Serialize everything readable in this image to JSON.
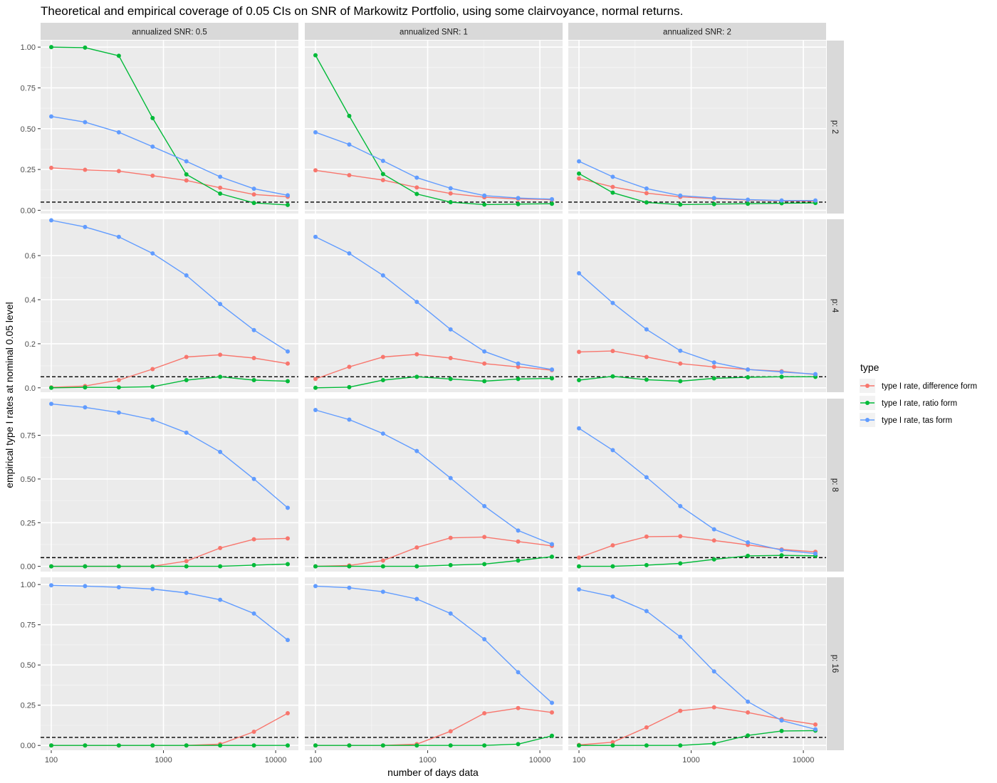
{
  "chart_data": {
    "type": "line",
    "title": "Theoretical and empirical coverage of 0.05 CIs on SNR of Markowitz Portfolio, using some clairvoyance, normal returns.",
    "xlabel": "number of days data",
    "ylabel": "empirical type I rates at nominal 0.05 level",
    "x_scale": "log10",
    "x_ticks": [
      100,
      1000,
      10000
    ],
    "x_tick_labels": [
      "100",
      "1000",
      "10000"
    ],
    "x": [
      100,
      200,
      400,
      800,
      1600,
      3200,
      6400,
      12800
    ],
    "reference_line": {
      "y": 0.05,
      "style": "dashed",
      "color": "#000000"
    },
    "legend": {
      "title": "type",
      "position": "right",
      "entries": [
        {
          "name": "type I rate, difference form",
          "color": "#F8766D"
        },
        {
          "name": "type I rate, ratio form",
          "color": "#00BA38"
        },
        {
          "name": "type I rate, tas form",
          "color": "#619CFF"
        }
      ]
    },
    "col_facets": [
      "annualized SNR: 0.5",
      "annualized SNR: 1",
      "annualized SNR: 2"
    ],
    "rows": [
      {
        "label": "p: 2",
        "ylim": [
          -0.02,
          1.04
        ],
        "y_ticks": [
          0,
          0.25,
          0.5,
          0.75,
          1.0
        ],
        "y_tick_labels": [
          "0.00",
          "0.25",
          "0.50",
          "0.75",
          "1.00"
        ],
        "panels": [
          {
            "difference": [
              0.26,
              0.248,
              0.24,
              0.212,
              0.183,
              0.138,
              0.097,
              0.083
            ],
            "ratio": [
              1.0,
              0.997,
              0.947,
              0.565,
              0.22,
              0.102,
              0.045,
              0.033
            ],
            "tas": [
              0.575,
              0.54,
              0.478,
              0.39,
              0.3,
              0.205,
              0.132,
              0.092
            ]
          },
          {
            "difference": [
              0.245,
              0.215,
              0.185,
              0.14,
              0.103,
              0.08,
              0.07,
              0.065
            ],
            "ratio": [
              0.95,
              0.578,
              0.222,
              0.1,
              0.05,
              0.035,
              0.038,
              0.04
            ],
            "tas": [
              0.478,
              0.403,
              0.303,
              0.2,
              0.135,
              0.09,
              0.075,
              0.068
            ]
          },
          {
            "difference": [
              0.195,
              0.143,
              0.105,
              0.082,
              0.072,
              0.063,
              0.058,
              0.055
            ],
            "ratio": [
              0.225,
              0.108,
              0.048,
              0.035,
              0.038,
              0.04,
              0.043,
              0.045
            ],
            "tas": [
              0.3,
              0.205,
              0.133,
              0.09,
              0.075,
              0.065,
              0.06,
              0.06
            ]
          }
        ]
      },
      {
        "label": "p: 4",
        "ylim": [
          -0.02,
          0.765
        ],
        "y_ticks": [
          0,
          0.2,
          0.4,
          0.6
        ],
        "y_tick_labels": [
          "0.0",
          "0.2",
          "0.4",
          "0.6"
        ],
        "panels": [
          {
            "difference": [
              0.002,
              0.008,
              0.035,
              0.085,
              0.14,
              0.15,
              0.135,
              0.11
            ],
            "ratio": [
              0.0,
              0.002,
              0.002,
              0.005,
              0.035,
              0.05,
              0.035,
              0.03
            ],
            "tas": [
              0.76,
              0.73,
              0.685,
              0.61,
              0.51,
              0.38,
              0.262,
              0.165
            ]
          },
          {
            "difference": [
              0.04,
              0.095,
              0.14,
              0.152,
              0.135,
              0.11,
              0.095,
              0.08
            ],
            "ratio": [
              0.0,
              0.003,
              0.035,
              0.05,
              0.04,
              0.03,
              0.04,
              0.043
            ],
            "tas": [
              0.685,
              0.61,
              0.51,
              0.39,
              0.265,
              0.165,
              0.11,
              0.083
            ]
          },
          {
            "difference": [
              0.163,
              0.167,
              0.14,
              0.11,
              0.095,
              0.083,
              0.075,
              0.06
            ],
            "ratio": [
              0.035,
              0.052,
              0.037,
              0.03,
              0.043,
              0.048,
              0.05,
              0.05
            ],
            "tas": [
              0.52,
              0.385,
              0.265,
              0.168,
              0.115,
              0.083,
              0.072,
              0.062
            ]
          }
        ]
      },
      {
        "label": "p: 8",
        "ylim": [
          -0.03,
          0.96
        ],
        "y_ticks": [
          0,
          0.25,
          0.5,
          0.75
        ],
        "y_tick_labels": [
          "0.00",
          "0.25",
          "0.50",
          "0.75"
        ],
        "panels": [
          {
            "difference": [
              0.0,
              0.0,
              0.0,
              0.0,
              0.03,
              0.105,
              0.155,
              0.16
            ],
            "ratio": [
              0.0,
              0.0,
              0.0,
              0.0,
              0.0,
              0.0,
              0.007,
              0.013
            ],
            "tas": [
              0.93,
              0.91,
              0.88,
              0.84,
              0.765,
              0.655,
              0.5,
              0.335
            ]
          },
          {
            "difference": [
              0.0,
              0.005,
              0.033,
              0.108,
              0.163,
              0.168,
              0.142,
              0.117
            ],
            "ratio": [
              0.0,
              0.0,
              0.0,
              0.0,
              0.007,
              0.013,
              0.033,
              0.055
            ],
            "tas": [
              0.895,
              0.84,
              0.76,
              0.66,
              0.505,
              0.345,
              0.205,
              0.127
            ]
          },
          {
            "difference": [
              0.05,
              0.12,
              0.17,
              0.172,
              0.148,
              0.123,
              0.097,
              0.083
            ],
            "ratio": [
              0.0,
              0.0,
              0.007,
              0.017,
              0.04,
              0.06,
              0.063,
              0.06
            ],
            "tas": [
              0.79,
              0.665,
              0.51,
              0.345,
              0.212,
              0.137,
              0.093,
              0.073
            ]
          }
        ]
      },
      {
        "label": "p: 16",
        "ylim": [
          -0.03,
          1.045
        ],
        "y_ticks": [
          0,
          0.25,
          0.5,
          0.75,
          1.0
        ],
        "y_tick_labels": [
          "0.00",
          "0.25",
          "0.50",
          "0.75",
          "1.00"
        ],
        "panels": [
          {
            "difference": [
              0.0,
              0.0,
              0.0,
              0.0,
              0.0,
              0.008,
              0.085,
              0.2
            ],
            "ratio": [
              0.0,
              0.0,
              0.0,
              0.0,
              0.0,
              0.0,
              0.0,
              0.0
            ],
            "tas": [
              0.995,
              0.99,
              0.983,
              0.972,
              0.948,
              0.905,
              0.82,
              0.655
            ]
          },
          {
            "difference": [
              0.0,
              0.0,
              0.0,
              0.008,
              0.088,
              0.2,
              0.232,
              0.205
            ],
            "ratio": [
              0.0,
              0.0,
              0.0,
              0.0,
              0.0,
              0.0,
              0.008,
              0.06
            ],
            "tas": [
              0.99,
              0.98,
              0.955,
              0.91,
              0.82,
              0.66,
              0.455,
              0.265
            ]
          },
          {
            "difference": [
              0.003,
              0.02,
              0.112,
              0.215,
              0.237,
              0.205,
              0.163,
              0.13
            ],
            "ratio": [
              0.0,
              0.0,
              0.0,
              0.0,
              0.012,
              0.062,
              0.09,
              0.092
            ],
            "tas": [
              0.97,
              0.925,
              0.835,
              0.675,
              0.46,
              0.272,
              0.155,
              0.1
            ]
          }
        ]
      }
    ]
  }
}
